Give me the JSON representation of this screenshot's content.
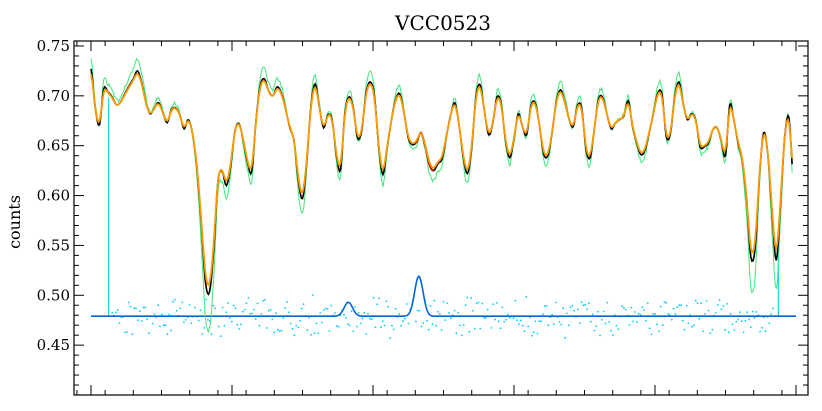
{
  "chart_data": {
    "type": "line",
    "title": "VCC0523",
    "xlabel": "",
    "ylabel": "counts",
    "ylim": [
      0.4,
      0.755
    ],
    "xlim": [
      0,
      100
    ],
    "y_ticks": [
      "0.45",
      "0.50",
      "0.55",
      "0.60",
      "0.65",
      "0.70",
      "0.75"
    ],
    "y_tick_values": [
      0.45,
      0.5,
      0.55,
      0.6,
      0.65,
      0.7,
      0.75
    ],
    "x_major_ticks": [
      0,
      20,
      40,
      60,
      80,
      100
    ],
    "grid": false,
    "colors": {
      "observed": "#000000",
      "model": "#ff9900",
      "model_alt": "#44e67a",
      "emission": "#0066dd",
      "masked": "#cc0000",
      "residual": "#00ccff",
      "mask_marker": "#22d8ea"
    },
    "mask_x": [
      2.5,
      97.5
    ],
    "residual_baseline": 0.479,
    "emission_lines": [
      {
        "x": 36.5,
        "amp": 0.014,
        "width": 0.6
      },
      {
        "x": 46.5,
        "amp": 0.04,
        "width": 0.6
      }
    ],
    "masked_region": [
      46.0,
      48.6
    ],
    "observed_points": [
      [
        0.0,
        0.727
      ],
      [
        0.6,
        0.688
      ],
      [
        1.2,
        0.671
      ],
      [
        1.8,
        0.707
      ],
      [
        2.4,
        0.704
      ],
      [
        3.0,
        0.699
      ],
      [
        3.6,
        0.691
      ],
      [
        4.2,
        0.694
      ],
      [
        4.8,
        0.702
      ],
      [
        5.4,
        0.71
      ],
      [
        6.0,
        0.717
      ],
      [
        6.6,
        0.725
      ],
      [
        7.2,
        0.713
      ],
      [
        7.8,
        0.693
      ],
      [
        8.4,
        0.682
      ],
      [
        9.0,
        0.688
      ],
      [
        9.6,
        0.693
      ],
      [
        10.2,
        0.683
      ],
      [
        10.8,
        0.673
      ],
      [
        11.4,
        0.686
      ],
      [
        12.0,
        0.688
      ],
      [
        12.6,
        0.681
      ],
      [
        13.2,
        0.667
      ],
      [
        13.8,
        0.676
      ],
      [
        14.4,
        0.662
      ],
      [
        15.0,
        0.629
      ],
      [
        15.6,
        0.577
      ],
      [
        16.2,
        0.515
      ],
      [
        16.8,
        0.503
      ],
      [
        17.4,
        0.545
      ],
      [
        18.0,
        0.614
      ],
      [
        18.6,
        0.624
      ],
      [
        19.2,
        0.61
      ],
      [
        19.8,
        0.629
      ],
      [
        20.4,
        0.664
      ],
      [
        21.0,
        0.672
      ],
      [
        21.6,
        0.655
      ],
      [
        22.2,
        0.633
      ],
      [
        22.8,
        0.624
      ],
      [
        23.4,
        0.675
      ],
      [
        24.0,
        0.71
      ],
      [
        24.6,
        0.717
      ],
      [
        25.2,
        0.705
      ],
      [
        25.8,
        0.7
      ],
      [
        26.4,
        0.709
      ],
      [
        27.0,
        0.703
      ],
      [
        27.6,
        0.687
      ],
      [
        28.2,
        0.668
      ],
      [
        28.8,
        0.655
      ],
      [
        29.4,
        0.616
      ],
      [
        30.0,
        0.597
      ],
      [
        30.6,
        0.634
      ],
      [
        31.2,
        0.69
      ],
      [
        31.8,
        0.712
      ],
      [
        32.4,
        0.688
      ],
      [
        33.0,
        0.668
      ],
      [
        33.6,
        0.681
      ],
      [
        34.2,
        0.676
      ],
      [
        34.8,
        0.641
      ],
      [
        35.4,
        0.626
      ],
      [
        36.0,
        0.682
      ],
      [
        36.6,
        0.699
      ],
      [
        37.2,
        0.688
      ],
      [
        37.8,
        0.658
      ],
      [
        38.4,
        0.665
      ],
      [
        39.0,
        0.702
      ],
      [
        39.6,
        0.714
      ],
      [
        40.2,
        0.7
      ],
      [
        40.8,
        0.65
      ],
      [
        41.4,
        0.621
      ],
      [
        42.0,
        0.648
      ],
      [
        42.6,
        0.675
      ],
      [
        43.2,
        0.696
      ],
      [
        43.8,
        0.702
      ],
      [
        44.4,
        0.683
      ],
      [
        45.0,
        0.658
      ],
      [
        45.6,
        0.651
      ],
      [
        46.2,
        0.654
      ],
      [
        46.8,
        0.663
      ],
      [
        47.4,
        0.65
      ],
      [
        48.0,
        0.631
      ],
      [
        48.6,
        0.625
      ],
      [
        49.2,
        0.632
      ],
      [
        49.8,
        0.637
      ],
      [
        50.4,
        0.659
      ],
      [
        51.0,
        0.68
      ],
      [
        51.6,
        0.693
      ],
      [
        52.2,
        0.671
      ],
      [
        52.8,
        0.639
      ],
      [
        53.4,
        0.622
      ],
      [
        54.0,
        0.648
      ],
      [
        54.6,
        0.699
      ],
      [
        55.2,
        0.711
      ],
      [
        55.8,
        0.685
      ],
      [
        56.4,
        0.661
      ],
      [
        57.0,
        0.673
      ],
      [
        57.6,
        0.699
      ],
      [
        58.2,
        0.691
      ],
      [
        58.8,
        0.655
      ],
      [
        59.4,
        0.638
      ],
      [
        60.0,
        0.657
      ],
      [
        60.6,
        0.682
      ],
      [
        61.2,
        0.669
      ],
      [
        61.8,
        0.661
      ],
      [
        62.4,
        0.69
      ],
      [
        63.0,
        0.693
      ],
      [
        63.6,
        0.671
      ],
      [
        64.2,
        0.642
      ],
      [
        64.8,
        0.64
      ],
      [
        65.4,
        0.663
      ],
      [
        66.0,
        0.694
      ],
      [
        66.6,
        0.706
      ],
      [
        67.2,
        0.694
      ],
      [
        67.8,
        0.677
      ],
      [
        68.4,
        0.669
      ],
      [
        69.0,
        0.69
      ],
      [
        69.6,
        0.688
      ],
      [
        70.2,
        0.647
      ],
      [
        70.8,
        0.638
      ],
      [
        71.4,
        0.667
      ],
      [
        72.0,
        0.697
      ],
      [
        72.6,
        0.698
      ],
      [
        73.2,
        0.681
      ],
      [
        73.8,
        0.667
      ],
      [
        74.4,
        0.673
      ],
      [
        75.0,
        0.676
      ],
      [
        75.6,
        0.68
      ],
      [
        76.2,
        0.695
      ],
      [
        76.8,
        0.67
      ],
      [
        77.4,
        0.653
      ],
      [
        78.0,
        0.641
      ],
      [
        78.6,
        0.646
      ],
      [
        79.2,
        0.664
      ],
      [
        79.8,
        0.683
      ],
      [
        80.4,
        0.703
      ],
      [
        81.0,
        0.701
      ],
      [
        81.6,
        0.659
      ],
      [
        82.2,
        0.663
      ],
      [
        82.8,
        0.699
      ],
      [
        83.4,
        0.714
      ],
      [
        84.0,
        0.692
      ],
      [
        84.6,
        0.676
      ],
      [
        85.2,
        0.682
      ],
      [
        85.8,
        0.675
      ],
      [
        86.4,
        0.649
      ],
      [
        87.0,
        0.649
      ],
      [
        87.6,
        0.653
      ],
      [
        88.2,
        0.666
      ],
      [
        88.8,
        0.668
      ],
      [
        89.4,
        0.655
      ],
      [
        90.0,
        0.64
      ],
      [
        90.6,
        0.691
      ],
      [
        91.2,
        0.675
      ],
      [
        91.8,
        0.652
      ],
      [
        92.4,
        0.635
      ],
      [
        93.0,
        0.595
      ],
      [
        93.6,
        0.538
      ],
      [
        94.2,
        0.547
      ],
      [
        94.8,
        0.618
      ],
      [
        95.4,
        0.663
      ],
      [
        96.0,
        0.642
      ],
      [
        96.6,
        0.583
      ],
      [
        97.2,
        0.535
      ],
      [
        97.8,
        0.592
      ],
      [
        98.4,
        0.659
      ],
      [
        99.0,
        0.678
      ],
      [
        99.6,
        0.619
      ]
    ]
  }
}
